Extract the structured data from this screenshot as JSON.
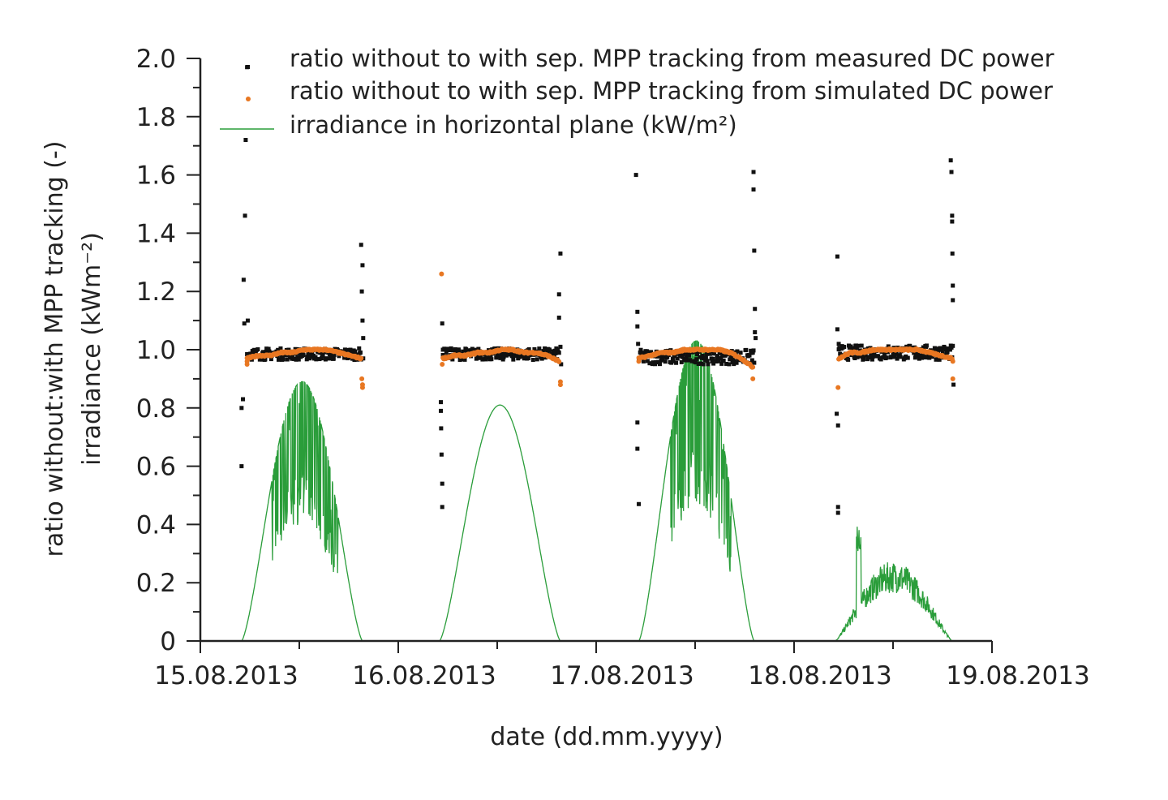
{
  "chart_data": {
    "type": "scatter",
    "xlabel": "date (dd.mm.yyyy)",
    "ylabel_line1": "ratio without:with MPP tracking (-)",
    "ylabel_line2": "irradiance (kWm⁻²)",
    "xlim": [
      "15.08.2013",
      "19.08.2013"
    ],
    "ylim": [
      0,
      2.0
    ],
    "x_ticks": [
      "15.08.2013",
      "16.08.2013",
      "17.08.2013",
      "18.08.2013",
      "19.08.2013"
    ],
    "y_ticks": [
      "0",
      "0.2",
      "0.4",
      "0.6",
      "0.8",
      "1.0",
      "1.2",
      "1.4",
      "1.6",
      "1.8",
      "2.0"
    ],
    "grid": false,
    "legend_position": "top",
    "colors": {
      "measured": "#111111",
      "simulated": "#e87722",
      "irradiance": "#2a9d3a",
      "axis": "#222222"
    },
    "series": [
      {
        "name": "ratio without to with sep. MPP tracking from measured DC power",
        "kind": "scatter",
        "points": [
          [
            "15.08.2013 05:00",
            0.6
          ],
          [
            "15.08.2013 05:00",
            0.8
          ],
          [
            "15.08.2013 05:10",
            0.83
          ],
          [
            "15.08.2013 05:15",
            1.24
          ],
          [
            "15.08.2013 05:20",
            1.09
          ],
          [
            "15.08.2013 05:25",
            1.46
          ],
          [
            "15.08.2013 05:30",
            1.72
          ],
          [
            "15.08.2013 05:40",
            1.97
          ],
          [
            "15.08.2013 05:45",
            1.1
          ],
          [
            "15.08.2013 19:30",
            1.36
          ],
          [
            "15.08.2013 19:35",
            1.2
          ],
          [
            "15.08.2013 19:40",
            1.29
          ],
          [
            "15.08.2013 19:40",
            1.1
          ],
          [
            "15.08.2013 19:45",
            1.04
          ],
          [
            "15.08.2013 19:45",
            0.97
          ],
          [
            "16.08.2013 05:10",
            0.82
          ],
          [
            "16.08.2013 05:10",
            0.79
          ],
          [
            "16.08.2013 05:12",
            0.73
          ],
          [
            "16.08.2013 05:15",
            0.64
          ],
          [
            "16.08.2013 05:20",
            0.54
          ],
          [
            "16.08.2013 05:20",
            0.46
          ],
          [
            "16.08.2013 05:20",
            1.09
          ],
          [
            "16.08.2013 05:25",
            1.0
          ],
          [
            "16.08.2013 19:30",
            1.19
          ],
          [
            "16.08.2013 19:30",
            1.11
          ],
          [
            "16.08.2013 19:40",
            1.33
          ],
          [
            "16.08.2013 19:40",
            1.01
          ],
          [
            "16.08.2013 19:45",
            0.95
          ],
          [
            "17.08.2013 04:50",
            1.6
          ],
          [
            "17.08.2013 05:00",
            1.13
          ],
          [
            "17.08.2013 05:00",
            1.08
          ],
          [
            "17.08.2013 05:00",
            0.75
          ],
          [
            "17.08.2013 05:00",
            0.66
          ],
          [
            "17.08.2013 05:10",
            0.47
          ],
          [
            "17.08.2013 05:05",
            1.02
          ],
          [
            "17.08.2013 19:05",
            1.61
          ],
          [
            "17.08.2013 19:05",
            1.55
          ],
          [
            "17.08.2013 19:10",
            1.34
          ],
          [
            "17.08.2013 19:15",
            1.14
          ],
          [
            "17.08.2013 19:15",
            1.06
          ],
          [
            "17.08.2013 19:20",
            1.04
          ],
          [
            "18.08.2013 05:15",
            1.32
          ],
          [
            "18.08.2013 05:15",
            1.07
          ],
          [
            "18.08.2013 05:10",
            0.78
          ],
          [
            "18.08.2013 05:20",
            0.74
          ],
          [
            "18.08.2013 05:20",
            0.46
          ],
          [
            "18.08.2013 05:20",
            0.44
          ],
          [
            "18.08.2013 05:25",
            1.02
          ],
          [
            "18.08.2013 19:00",
            1.65
          ],
          [
            "18.08.2013 19:05",
            1.61
          ],
          [
            "18.08.2013 19:10",
            1.46
          ],
          [
            "18.08.2013 19:10",
            1.44
          ],
          [
            "18.08.2013 19:12",
            1.33
          ],
          [
            "18.08.2013 19:15",
            1.22
          ],
          [
            "18.08.2013 19:15",
            1.17
          ],
          [
            "18.08.2013 19:20",
            0.88
          ]
        ],
        "bands": [
          {
            "start": "15.08.2013 05:40",
            "end": "15.08.2013 19:30",
            "center": 0.985,
            "spread": 0.02
          },
          {
            "start": "16.08.2013 05:25",
            "end": "16.08.2013 19:30",
            "center": 0.985,
            "spread": 0.02
          },
          {
            "start": "17.08.2013 05:10",
            "end": "17.08.2013 19:10",
            "center": 0.975,
            "spread": 0.025
          },
          {
            "start": "18.08.2013 05:25",
            "end": "18.08.2013 19:15",
            "center": 0.99,
            "spread": 0.025
          }
        ]
      },
      {
        "name": "ratio without to with sep. MPP tracking from simulated DC power",
        "kind": "scatter",
        "points": [
          [
            "15.08.2013 05:40",
            0.96
          ],
          [
            "15.08.2013 05:40",
            0.95
          ],
          [
            "15.08.2013 19:40",
            0.88
          ],
          [
            "15.08.2013 19:40",
            0.87
          ],
          [
            "15.08.2013 19:35",
            0.9
          ],
          [
            "16.08.2013 05:15",
            1.26
          ],
          [
            "16.08.2013 05:20",
            0.95
          ],
          [
            "16.08.2013 19:40",
            0.89
          ],
          [
            "16.08.2013 19:40",
            0.88
          ],
          [
            "17.08.2013 05:10",
            0.96
          ],
          [
            "17.08.2013 19:00",
            0.9
          ],
          [
            "18.08.2013 05:20",
            0.87
          ],
          [
            "18.08.2013 19:15",
            0.9
          ],
          [
            "18.08.2013 19:15",
            0.96
          ]
        ],
        "curves": [
          {
            "start": "15.08.2013 05:40",
            "end": "15.08.2013 19:30",
            "values": [
              0.97,
              0.98,
              0.98,
              0.99,
              0.99,
              1.0,
              1.0,
              1.0,
              0.99,
              0.98,
              0.97
            ]
          },
          {
            "start": "16.08.2013 05:25",
            "end": "16.08.2013 19:30",
            "values": [
              0.97,
              0.98,
              0.98,
              0.99,
              0.99,
              1.0,
              1.0,
              0.99,
              0.99,
              0.98,
              0.96
            ]
          },
          {
            "start": "17.08.2013 05:10",
            "end": "17.08.2013 19:00",
            "values": [
              0.97,
              0.98,
              0.99,
              0.99,
              1.0,
              1.0,
              1.0,
              1.0,
              0.99,
              0.97,
              0.94
            ]
          },
          {
            "start": "18.08.2013 05:25",
            "end": "18.08.2013 19:10",
            "values": [
              0.97,
              0.99,
              0.99,
              1.0,
              1.0,
              1.0,
              1.0,
              1.0,
              0.99,
              0.98,
              0.97
            ]
          }
        ]
      },
      {
        "name": "irradiance in horizontal plane (kW/m²)",
        "kind": "line",
        "days": [
          {
            "start": "15.08.2013 05:00",
            "end": "15.08.2013 19:40",
            "peak": 0.89,
            "profile": "variable"
          },
          {
            "start": "16.08.2013 05:00",
            "end": "16.08.2013 19:40",
            "peak": 0.81,
            "profile": "clear"
          },
          {
            "start": "17.08.2013 05:10",
            "end": "17.08.2013 19:10",
            "peak": 1.03,
            "profile": "variable"
          },
          {
            "start": "18.08.2013 05:00",
            "end": "18.08.2013 19:10",
            "peak": 0.4,
            "profile": "overcast"
          }
        ]
      }
    ]
  }
}
